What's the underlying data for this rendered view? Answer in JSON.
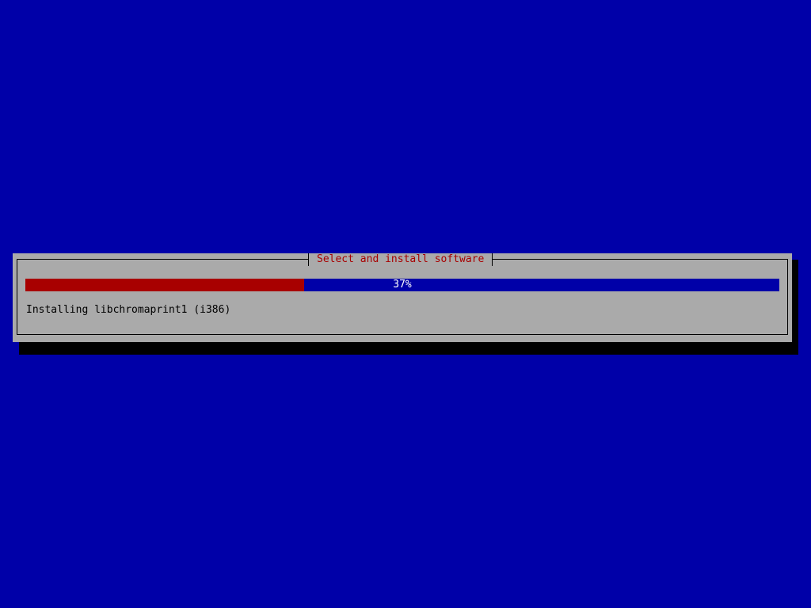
{
  "dialog": {
    "title": "Select and install software",
    "progress": {
      "percent": 37,
      "label": "37%"
    },
    "status": "Installing libchromaprint1 (i386)"
  },
  "colors": {
    "background": "#0000a8",
    "dialog": "#aaaaaa",
    "progress_fill": "#a80000",
    "progress_track": "#0000a8",
    "title_text": "#a80000"
  }
}
